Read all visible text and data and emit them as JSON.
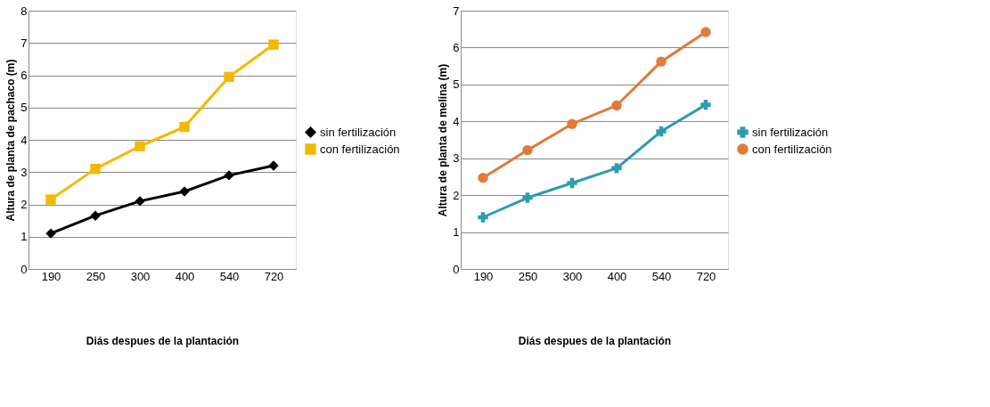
{
  "chart_data": [
    {
      "type": "line",
      "xlabel": "Diás despues de la plantación",
      "ylabel": "Altura de planta de pachaco (m)",
      "categories": [
        "190",
        "250",
        "300",
        "400",
        "540",
        "720"
      ],
      "series": [
        {
          "name": "sin fertilización",
          "color": "#000000",
          "marker": "diamond",
          "values": [
            1.1,
            1.65,
            2.1,
            2.4,
            2.9,
            3.2
          ]
        },
        {
          "name": "con fertilización",
          "color": "#f5b800",
          "marker": "square",
          "values": [
            2.15,
            3.1,
            3.8,
            4.4,
            5.95,
            6.95
          ]
        }
      ],
      "ylim": [
        0,
        8
      ],
      "yticks": [
        0,
        1,
        2,
        3,
        4,
        5,
        6,
        7,
        8
      ],
      "grid": "y",
      "legend": "right"
    },
    {
      "type": "line",
      "xlabel": "Diás despues de la plantación",
      "ylabel": "Altura de planta de melina  (m)",
      "categories": [
        "190",
        "250",
        "300",
        "400",
        "540",
        "720"
      ],
      "series": [
        {
          "name": "sin fertilización",
          "color": "#2e9cb0",
          "marker": "cross",
          "values": [
            1.4,
            1.93,
            2.33,
            2.73,
            3.73,
            4.45
          ]
        },
        {
          "name": "con fertilización",
          "color": "#e07b39",
          "marker": "circle",
          "values": [
            2.47,
            3.22,
            3.93,
            4.43,
            5.62,
            6.42
          ]
        }
      ],
      "ylim": [
        0,
        7
      ],
      "yticks": [
        0,
        1,
        2,
        3,
        4,
        5,
        6,
        7
      ],
      "grid": "y",
      "legend": "right"
    }
  ]
}
